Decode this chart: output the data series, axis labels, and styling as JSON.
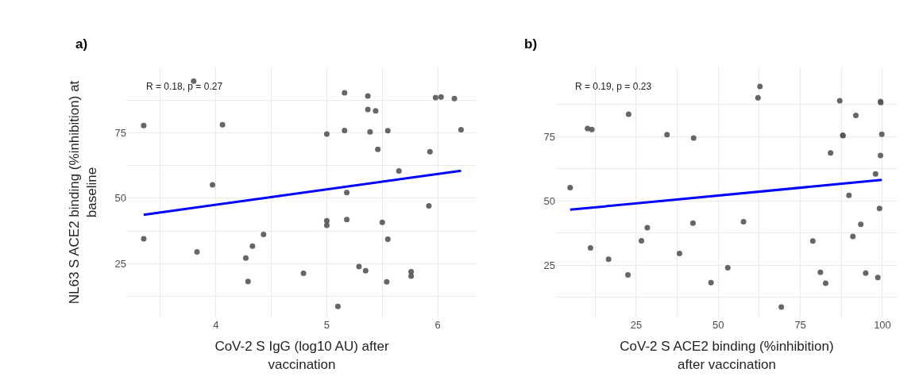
{
  "chart_data": [
    {
      "type": "scatter",
      "title": "a)",
      "xlabel": "CoV-2 S IgG (log10 AU) after vaccination",
      "ylabel": "NL63 S ACE2 binding (%inhibition) at baseline",
      "annotations": [
        "R = 0.18, p = 0.27"
      ],
      "xlim": [
        3.2,
        6.35
      ],
      "ylim": [
        4.5,
        100
      ],
      "xticks": [
        {
          "value": 3.5,
          "label": null
        },
        4,
        {
          "value": 4.5,
          "label": null
        },
        5,
        {
          "value": 5.5,
          "label": null
        },
        6
      ],
      "yticks": [
        {
          "value": 12.5,
          "label": null
        },
        25,
        {
          "value": 37.5,
          "label": null
        },
        50,
        {
          "value": 62.5,
          "label": null
        },
        75,
        {
          "value": 87.5,
          "label": null
        }
      ],
      "grid": true,
      "series": [
        {
          "type": "scatter",
          "marker": "circle",
          "color": "#555555",
          "x": [
            3.8,
            3.35,
            4.06,
            5.16,
            5.37,
            5.37,
            5.44,
            5.98,
            6.03,
            6.15,
            5.0,
            5.16,
            5.39,
            5.55,
            6.21,
            5.46,
            5.93,
            5.65,
            3.97,
            5.18,
            5.92,
            5.0,
            5.0,
            5.18,
            5.5,
            5.55,
            3.35,
            4.43,
            4.33,
            4.27,
            3.83,
            4.29,
            4.79,
            5.29,
            5.35,
            5.54,
            5.76,
            5.76,
            5.1
          ],
          "values": [
            94.8,
            77.8,
            78.1,
            90.3,
            89.1,
            83.9,
            83.4,
            88.5,
            88.7,
            88.1,
            74.5,
            75.9,
            75.4,
            75.8,
            76.2,
            68.7,
            67.8,
            60.4,
            55.1,
            52.2,
            47.1,
            41.4,
            39.7,
            41.9,
            40.8,
            34.4,
            34.5,
            36.2,
            31.7,
            27.2,
            29.5,
            18.2,
            21.3,
            23.9,
            22.3,
            18.1,
            21.9,
            20.3,
            8.7
          ]
        },
        {
          "type": "line",
          "marker": "none",
          "color": "#0000ff",
          "x": [
            3.35,
            6.21
          ],
          "values": [
            43.7,
            60.5
          ]
        }
      ]
    },
    {
      "type": "scatter",
      "title": "b)",
      "xlabel": "CoV-2 S ACE2 binding (%inhibition) after vaccination",
      "annotations": [
        "R = 0.19, p = 0.23"
      ],
      "xlim": [
        0.6,
        104.6
      ],
      "ylim": [
        4.7,
        102
      ],
      "xticks": [
        {
          "value": 12.5,
          "label": null
        },
        25,
        {
          "value": 37.5,
          "label": null
        },
        50,
        {
          "value": 62.5,
          "label": null
        },
        75,
        {
          "value": 87.5,
          "label": null
        },
        100
      ],
      "yticks": [
        {
          "value": 12.5,
          "label": null
        },
        25,
        {
          "value": 37.5,
          "label": null
        },
        50,
        {
          "value": 62.5,
          "label": null
        },
        75,
        {
          "value": 87.5,
          "label": null
        }
      ],
      "grid": true,
      "series": [
        {
          "type": "scatter",
          "marker": "circle",
          "color": "#555555",
          "x": [
            62.7,
            62.1,
            87.0,
            99.4,
            99.5,
            22.7,
            91.9,
            10.2,
            11.5,
            34.4,
            42.5,
            87.9,
            88.0,
            99.8,
            84.2,
            99.4,
            97.9,
            4.9,
            89.8,
            99.1,
            28.4,
            42.3,
            57.7,
            93.4,
            91.0,
            78.8,
            26.6,
            11.1,
            16.6,
            38.2,
            22.5,
            52.9,
            47.8,
            81.1,
            82.7,
            94.9,
            98.6,
            69.2
          ],
          "values": [
            94.6,
            90.2,
            89.0,
            88.7,
            88.3,
            83.8,
            83.3,
            78.2,
            77.8,
            75.8,
            74.5,
            75.6,
            75.4,
            76.0,
            68.7,
            67.7,
            60.5,
            55.2,
            52.2,
            47.1,
            39.6,
            41.4,
            41.9,
            40.9,
            36.2,
            34.4,
            34.5,
            31.7,
            27.3,
            29.6,
            21.2,
            24.0,
            18.2,
            22.2,
            18.0,
            21.9,
            20.2,
            8.7
          ]
        },
        {
          "type": "line",
          "marker": "none",
          "color": "#0000ff",
          "x": [
            4.9,
            99.8
          ],
          "values": [
            46.6,
            58.2
          ]
        }
      ]
    }
  ]
}
